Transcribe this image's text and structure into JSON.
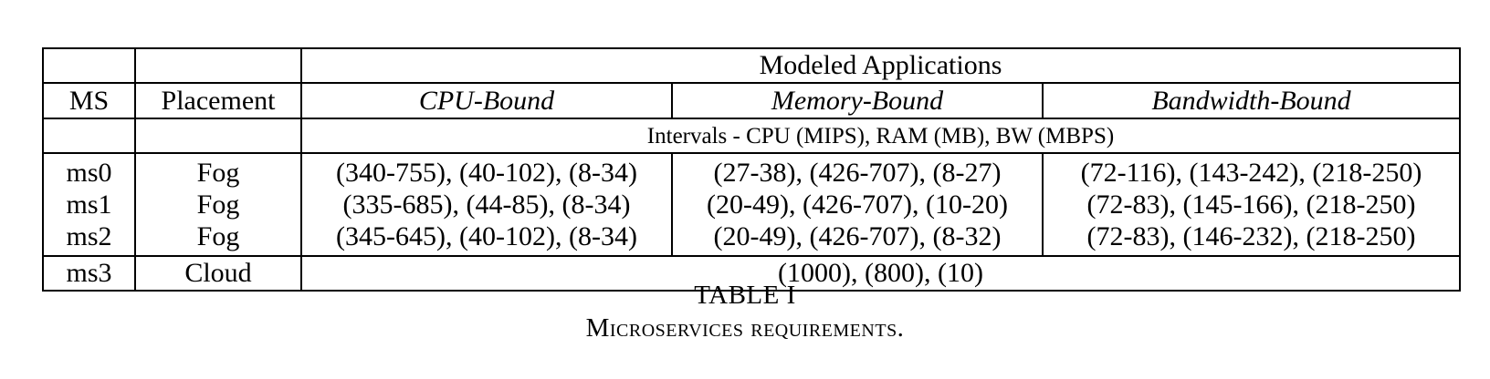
{
  "table": {
    "header_top": {
      "ms": "",
      "placement": "",
      "group": "Modeled Applications"
    },
    "header_cols": {
      "ms": "MS",
      "placement": "Placement",
      "cpu": "CPU-Bound",
      "memory": "Memory-Bound",
      "bandwidth": "Bandwidth-Bound"
    },
    "units_row": {
      "ms": "",
      "placement": "",
      "text": "Intervals - CPU (MIPS), RAM (MB), BW (MBPS)"
    },
    "rows": [
      {
        "ms": "ms0",
        "placement": "Fog",
        "cpu": "(340-755), (40-102), (8-34)",
        "memory": "(27-38), (426-707), (8-27)",
        "bandwidth": "(72-116), (143-242), (218-250)"
      },
      {
        "ms": "ms1",
        "placement": "Fog",
        "cpu": "(335-685), (44-85), (8-34)",
        "memory": "(20-49), (426-707), (10-20)",
        "bandwidth": "(72-83), (145-166), (218-250)"
      },
      {
        "ms": "ms2",
        "placement": "Fog",
        "cpu": "(345-645), (40-102), (8-34)",
        "memory": "(20-49), (426-707), (8-32)",
        "bandwidth": "(72-83), (146-232), (218-250)"
      }
    ],
    "cloud_row": {
      "ms": "ms3",
      "placement": "Cloud",
      "value": "(1000), (800), (10)"
    }
  },
  "caption": {
    "label": "TABLE I",
    "text": "Microservices requirements."
  }
}
